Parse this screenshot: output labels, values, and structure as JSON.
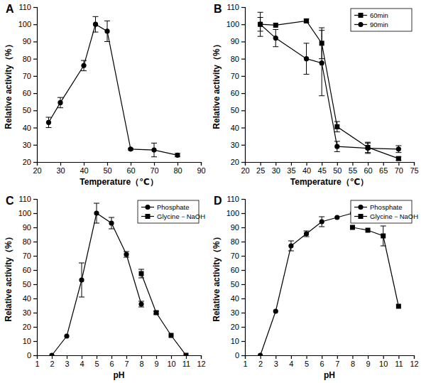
{
  "chart_data": [
    {
      "type": "line",
      "title": "A",
      "x_label": "Temperature（℃）",
      "y_label": "Relative activity（%）",
      "xlim": [
        20,
        90
      ],
      "xticks": [
        20,
        30,
        40,
        50,
        60,
        70,
        80,
        90
      ],
      "ylim": [
        20,
        110
      ],
      "yticks": [
        20,
        30,
        40,
        50,
        60,
        70,
        80,
        90,
        100,
        110
      ],
      "series": [
        {
          "color": "#000000",
          "marker": "circle",
          "line_style": "solid",
          "x": [
            25,
            30,
            40,
            45,
            50,
            60,
            70,
            80
          ],
          "values": [
            43,
            54.5,
            76,
            100,
            96,
            27.5,
            27,
            24
          ],
          "errors": [
            3,
            3,
            3,
            4.5,
            6,
            0.5,
            4,
            1
          ]
        }
      ]
    },
    {
      "type": "line",
      "title": "B",
      "x_label": "Temperature（℃）",
      "y_label": "Relative activity（%）",
      "xlim": [
        20,
        75
      ],
      "xticks": [
        20,
        25,
        30,
        35,
        40,
        45,
        50,
        55,
        60,
        65,
        70,
        75
      ],
      "ylim": [
        20,
        110
      ],
      "yticks": [
        20,
        30,
        40,
        50,
        60,
        70,
        80,
        90,
        100,
        110
      ],
      "legend": "top-right",
      "series": [
        {
          "name": "60min",
          "color": "#000000",
          "marker": "square",
          "line_style": "solid",
          "x": [
            25,
            30,
            40,
            45,
            50,
            60,
            70
          ],
          "values": [
            100,
            99.5,
            102,
            89,
            40.5,
            28.5,
            22
          ],
          "errors": [
            4,
            null,
            1,
            9,
            3,
            3,
            1
          ]
        },
        {
          "name": "90min",
          "color": "#000000",
          "marker": "circle",
          "line_style": "solid",
          "x": [
            25,
            30,
            40,
            45,
            50,
            60,
            70
          ],
          "values": [
            100,
            92,
            80,
            77.5,
            29,
            28,
            27.5
          ],
          "errors": [
            7,
            5,
            9,
            19,
            3,
            3,
            2
          ]
        }
      ]
    },
    {
      "type": "line",
      "title": "C",
      "x_label": "pH",
      "y_label": "Relative activity（%）",
      "xlim": [
        1,
        12
      ],
      "xticks": [
        1,
        2,
        3,
        4,
        5,
        6,
        7,
        8,
        9,
        10,
        11,
        12
      ],
      "ylim": [
        0,
        110
      ],
      "yticks": [
        0,
        10,
        20,
        30,
        40,
        50,
        60,
        70,
        80,
        90,
        100,
        110
      ],
      "legend": "top-right",
      "series": [
        {
          "name": "Phosphate",
          "color": "#000000",
          "marker": "circle",
          "line_style": "solid",
          "x": [
            2,
            3,
            4,
            5,
            6,
            7,
            8
          ],
          "values": [
            0,
            13.5,
            53,
            100,
            93,
            71,
            36
          ],
          "errors": [
            null,
            null,
            12,
            7,
            4,
            2,
            2
          ]
        },
        {
          "name": "Glycine－NaOH",
          "color": "#000000",
          "marker": "square",
          "line_style": "solid",
          "x": [
            8,
            9,
            10,
            11
          ],
          "values": [
            57.5,
            30,
            14,
            0
          ],
          "errors": [
            3,
            1,
            null,
            null
          ]
        }
      ]
    },
    {
      "type": "line",
      "title": "D",
      "x_label": "pH",
      "y_label": "Relative activity（%）",
      "xlim": [
        1,
        12
      ],
      "xticks": [
        1,
        2,
        3,
        4,
        5,
        6,
        7,
        8,
        9,
        10,
        11,
        12
      ],
      "ylim": [
        0,
        110
      ],
      "yticks": [
        0,
        10,
        20,
        30,
        40,
        50,
        60,
        70,
        80,
        90,
        100,
        110
      ],
      "legend": "top-right",
      "series": [
        {
          "name": "Phosphate",
          "color": "#000000",
          "marker": "circle",
          "line_style": "solid",
          "x": [
            2,
            3,
            4,
            5,
            6,
            7,
            8
          ],
          "values": [
            0,
            31,
            77,
            85.5,
            94,
            97,
            100
          ],
          "errors": [
            null,
            null,
            3.5,
            2,
            3.5,
            null,
            null
          ]
        },
        {
          "name": "Glycine－NaOH",
          "color": "#000000",
          "marker": "square",
          "line_style": "solid",
          "x": [
            8,
            9,
            10,
            11
          ],
          "values": [
            90,
            88,
            84,
            34.5
          ],
          "errors": [
            null,
            null,
            7,
            null
          ]
        }
      ]
    }
  ]
}
